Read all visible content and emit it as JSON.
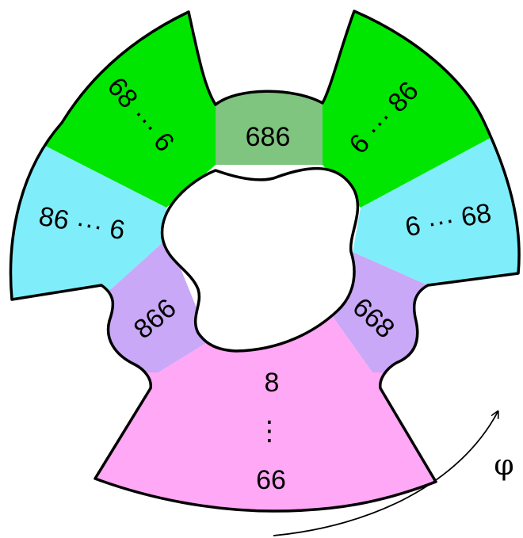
{
  "regions": {
    "green_left": {
      "label": "68 ··· 6",
      "color": "#00e600"
    },
    "green_mid": {
      "label": "686",
      "color": "#7fc47f"
    },
    "green_right": {
      "label": "6 ··· 86",
      "color": "#00e600"
    },
    "cyan_left": {
      "label": "86 ··· 6",
      "color": "#80eefa"
    },
    "cyan_right": {
      "label": "6 ··· 68",
      "color": "#80eefa"
    },
    "purple_left": {
      "label": "866",
      "color": "#c9a8f7"
    },
    "purple_right": {
      "label": "668",
      "color": "#c9a8f7"
    },
    "pink_bottom": {
      "label_top": "8",
      "label_dots": "⋮",
      "label_bottom": "66",
      "color": "#ffa8f5"
    }
  },
  "rotation_arrow": {
    "label": "φ"
  },
  "outline_color": "#000000"
}
